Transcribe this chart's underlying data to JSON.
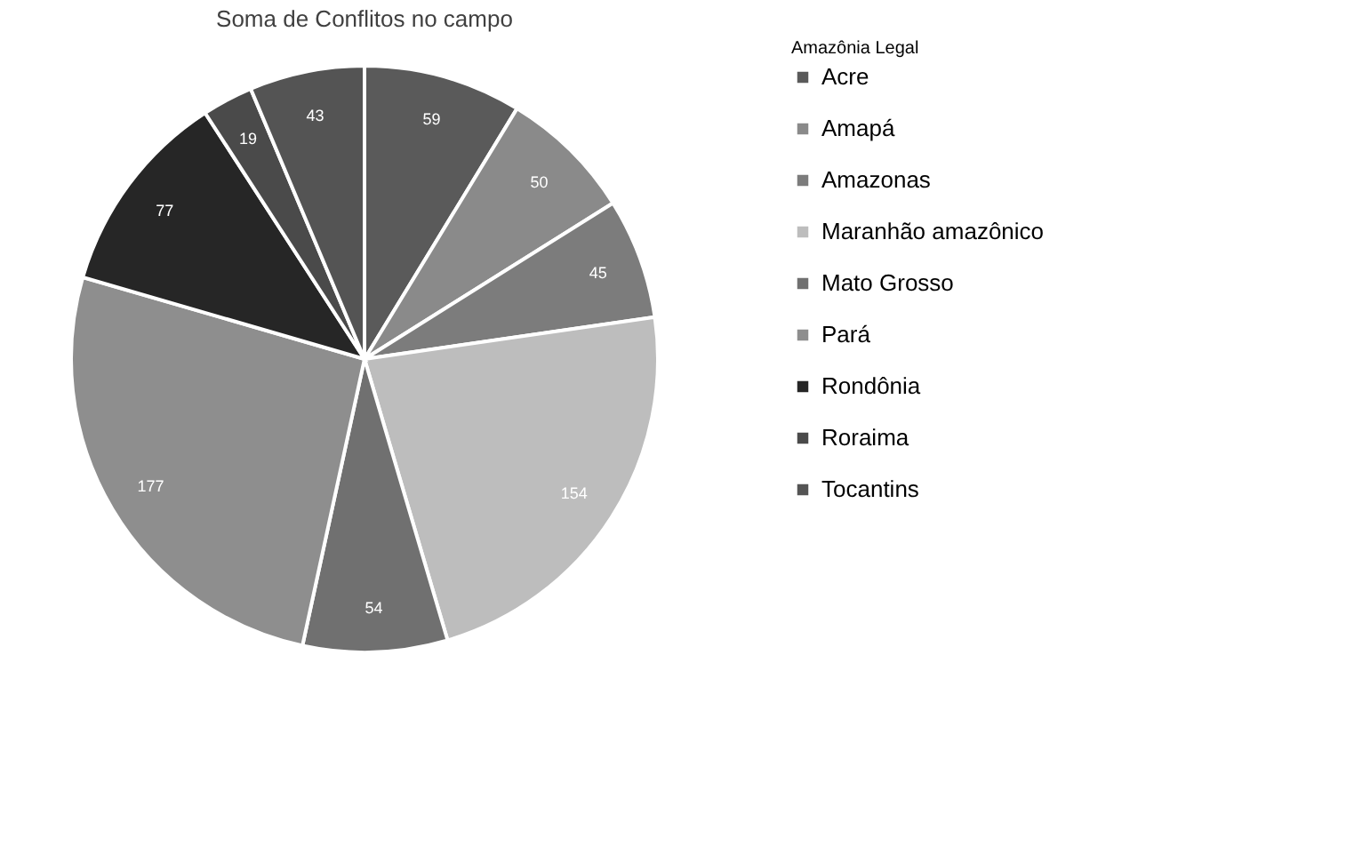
{
  "chart_data": {
    "type": "pie",
    "title": "Soma de Conflitos no campo",
    "legend_title": "Amazônia Legal",
    "categories": [
      "Acre",
      "Amapá",
      "Amazonas",
      "Maranhão amazônico",
      "Mato Grosso",
      "Pará",
      "Rondônia",
      "Roraima",
      "Tocantins"
    ],
    "values": [
      59,
      50,
      45,
      154,
      54,
      177,
      77,
      19,
      43
    ],
    "colors": [
      "#5a5a5a",
      "#8a8a8a",
      "#7c7c7c",
      "#bdbdbd",
      "#707070",
      "#8e8e8e",
      "#262626",
      "#4a4a4a",
      "#545454"
    ],
    "data_labels": true,
    "legend": "right"
  }
}
